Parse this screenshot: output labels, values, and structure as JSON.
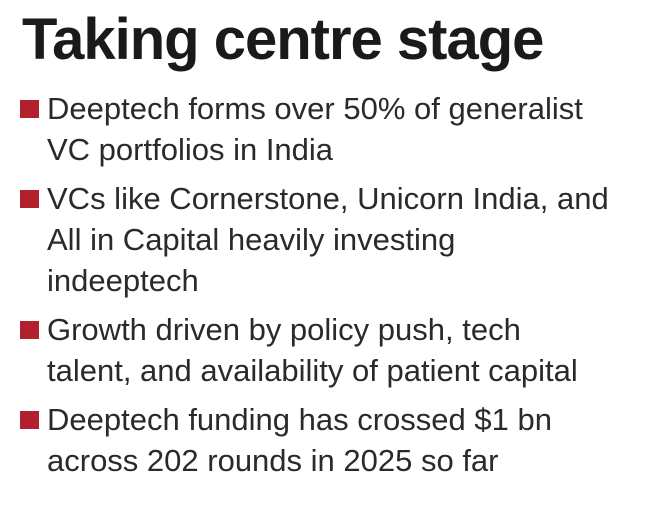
{
  "title": "Taking centre stage",
  "accent_color": "#b21f2d",
  "bullets": [
    {
      "icon": "square-bullet-icon",
      "lines": [
        "Deeptech forms over 50% of generalist",
        "VC portfolios in India"
      ]
    },
    {
      "icon": "square-bullet-icon",
      "lines": [
        "VCs like Cornerstone, Unicorn India, and",
        "All in Capital heavily investing",
        "indeeptech"
      ]
    },
    {
      "icon": "square-bullet-icon",
      "lines": [
        "Growth driven by policy push, tech",
        "talent, and availability of patient capital"
      ]
    },
    {
      "icon": "square-bullet-icon",
      "lines": [
        "Deeptech funding has crossed $1 bn",
        "across 202 rounds in 2025 so far"
      ]
    }
  ]
}
